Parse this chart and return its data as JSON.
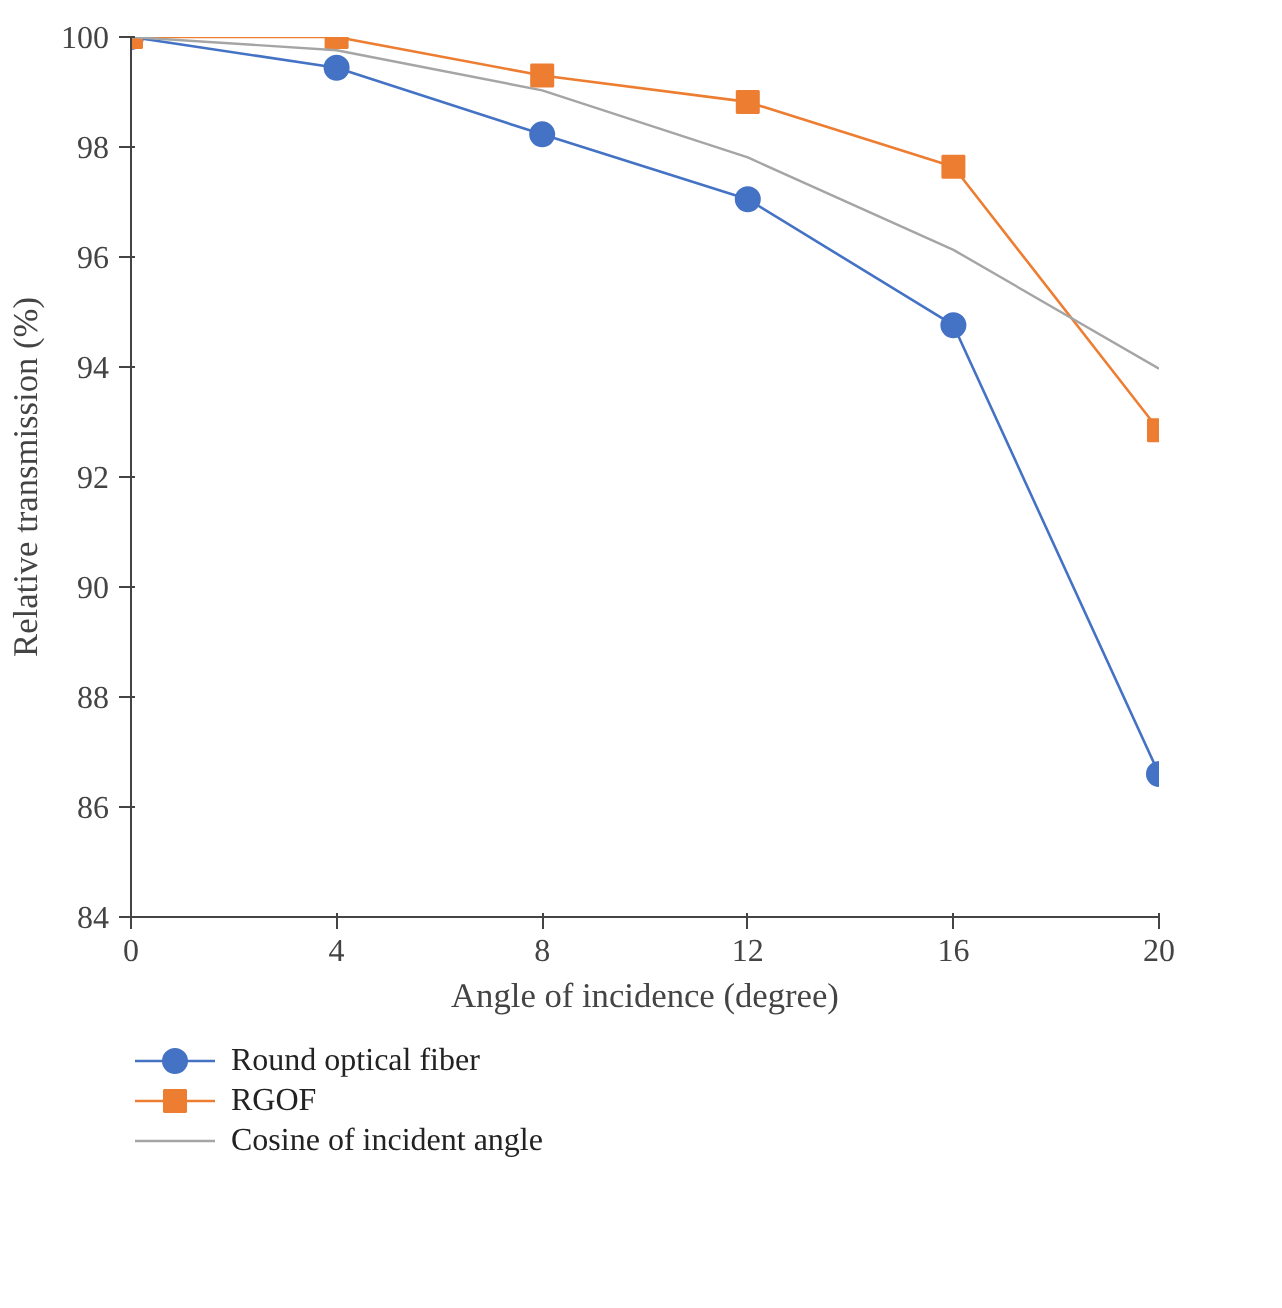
{
  "chart_data": {
    "type": "line",
    "xlabel": "Angle of incidence (degree)",
    "ylabel": "Relative transmission (%)",
    "x": [
      0,
      4,
      8,
      12,
      16,
      20
    ],
    "series": [
      {
        "name": "Round optical fiber",
        "color": "#4472c4",
        "marker": "circle",
        "values": [
          100,
          99.44,
          98.23,
          97.05,
          94.76,
          86.6
        ]
      },
      {
        "name": "RGOF",
        "color": "#ed7d31",
        "marker": "square",
        "values": [
          100,
          100,
          99.3,
          98.82,
          97.64,
          92.85
        ]
      },
      {
        "name": "Cosine of incident angle",
        "color": "#a5a5a5",
        "marker": "none",
        "values": [
          100,
          99.76,
          99.03,
          97.81,
          96.13,
          93.97
        ]
      }
    ],
    "xlim": [
      0,
      20
    ],
    "xticks": [
      0,
      4,
      8,
      12,
      16,
      20
    ],
    "ylim": [
      84,
      100
    ],
    "yticks": [
      84,
      86,
      88,
      90,
      92,
      94,
      96,
      98,
      100
    ],
    "grid": false,
    "legend": "bottom",
    "line_style": "solid"
  }
}
